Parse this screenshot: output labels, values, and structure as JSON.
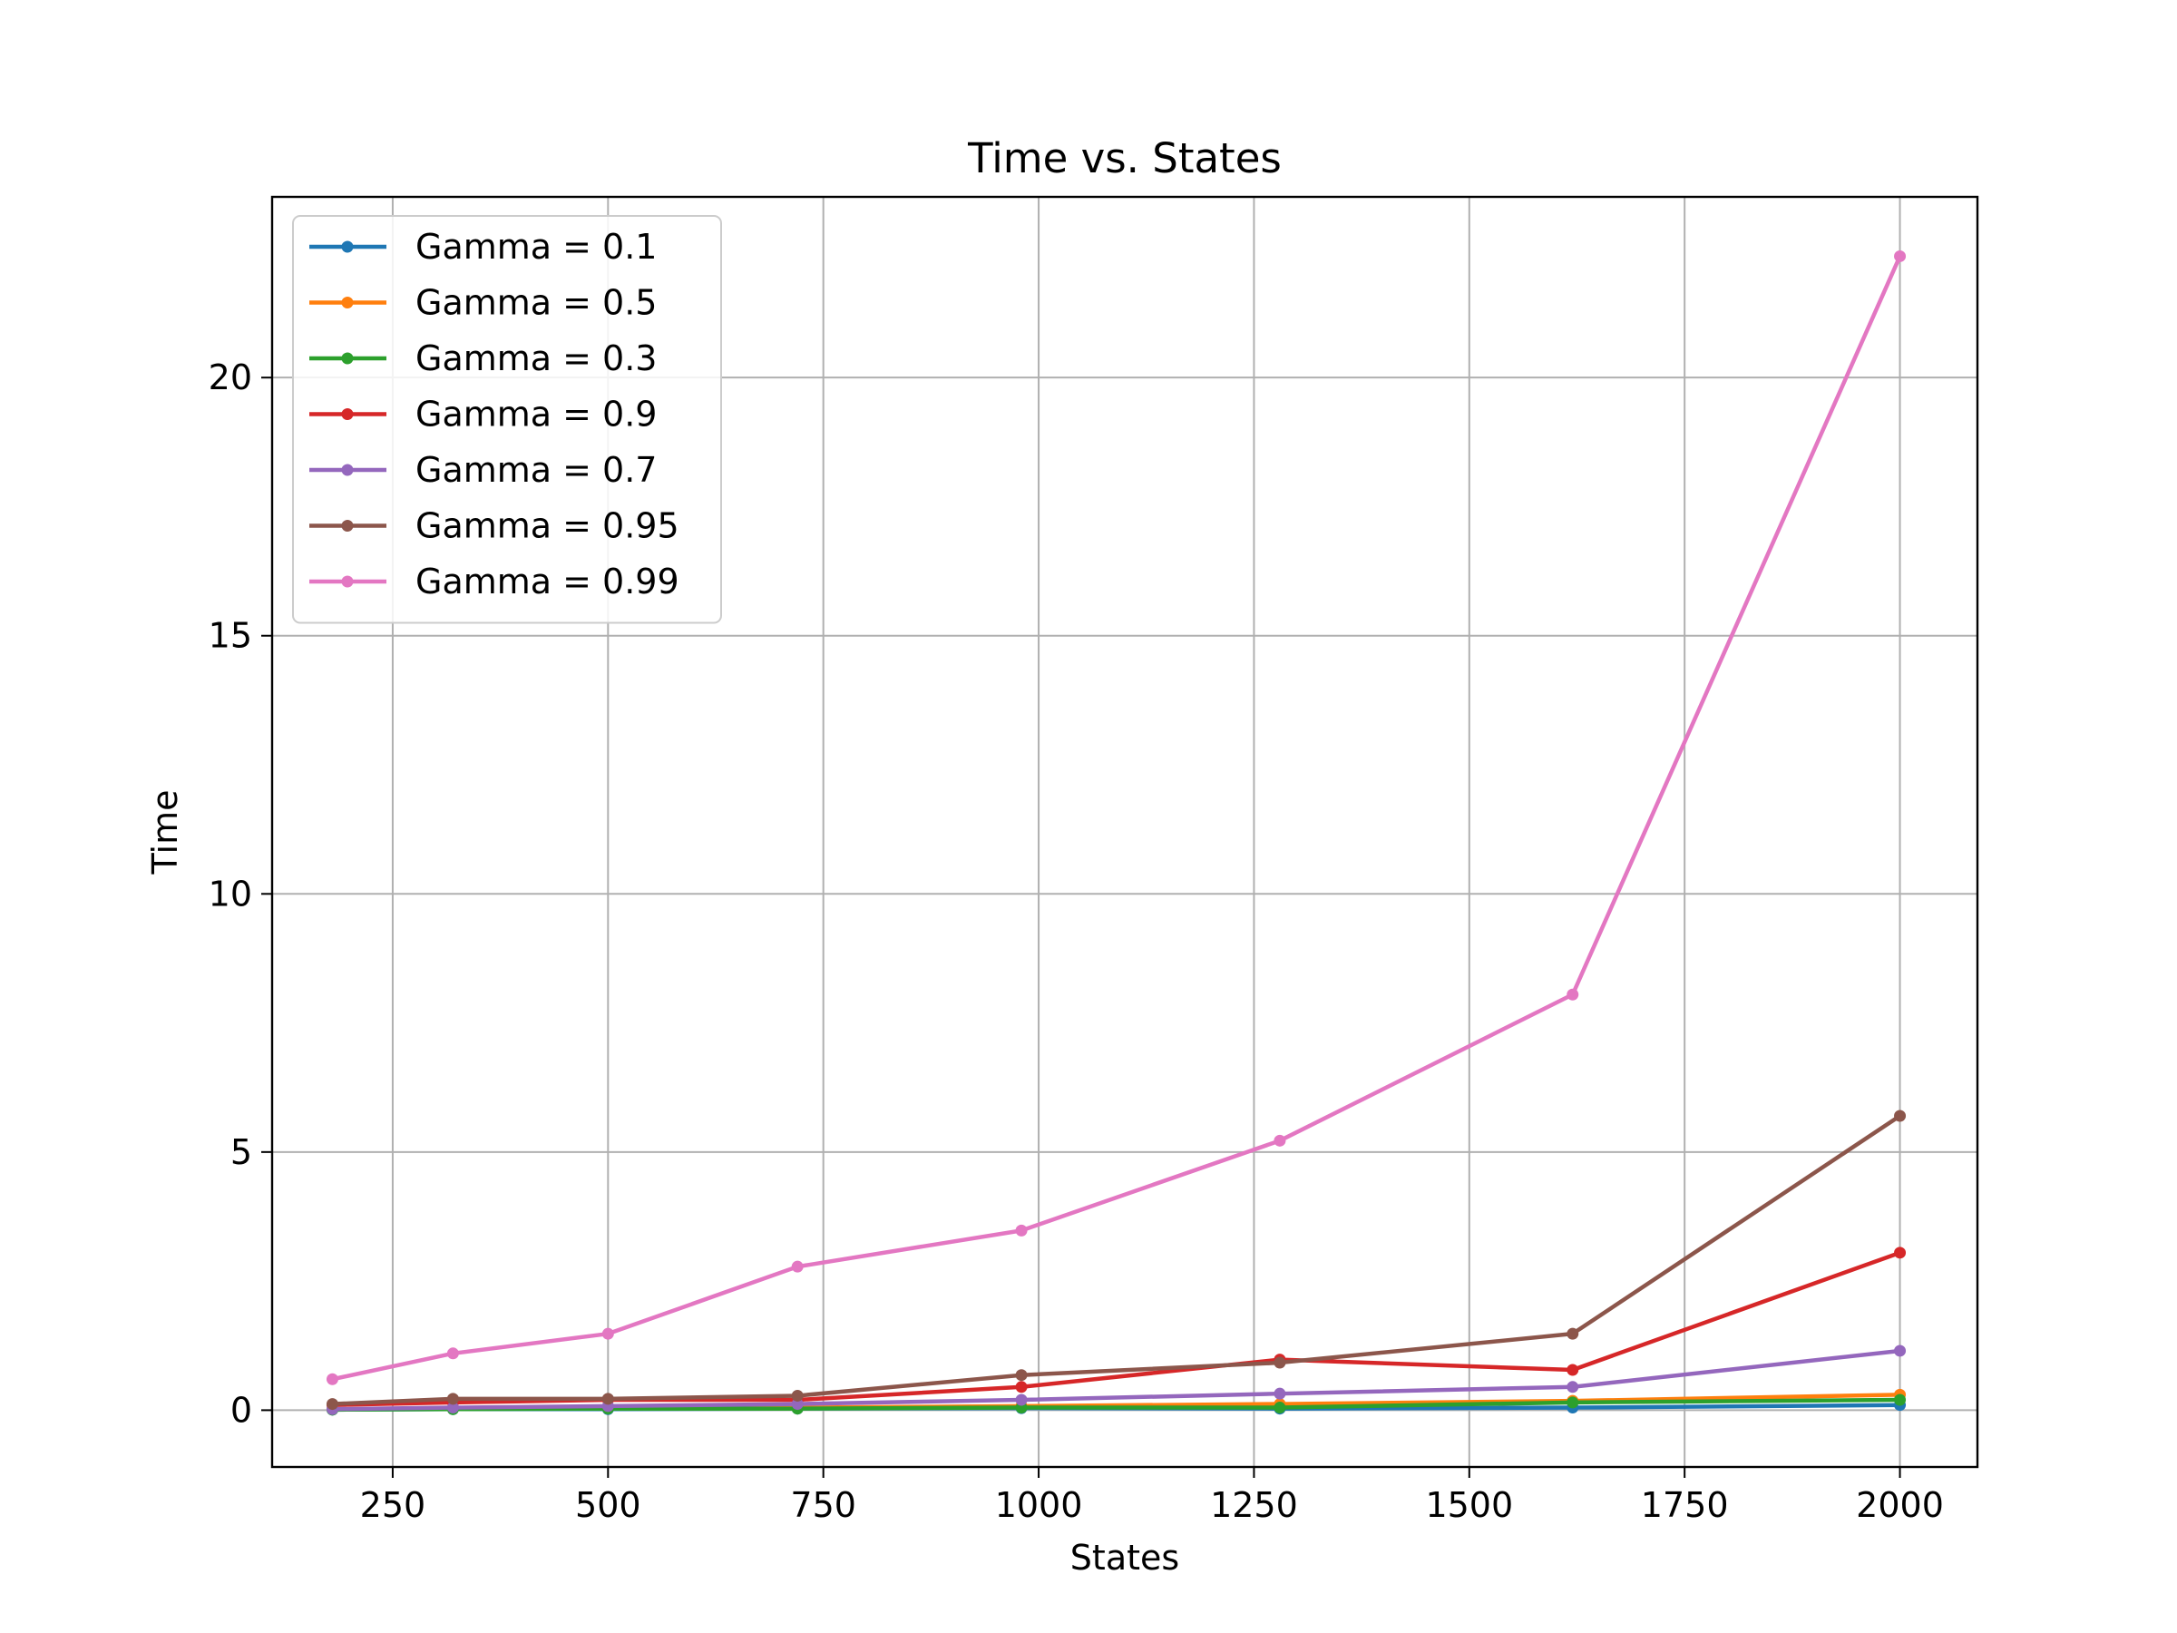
{
  "chart_data": {
    "type": "line",
    "title": "Time vs. States",
    "xlabel": "States",
    "ylabel": "Time",
    "xlim": [
      110,
      2090
    ],
    "ylim": [
      -1.1,
      23.5
    ],
    "xticks": [
      250,
      500,
      750,
      1000,
      1250,
      1500,
      1750,
      2000
    ],
    "yticks": [
      0,
      5,
      10,
      15,
      20
    ],
    "grid": true,
    "legend_position": "top-left",
    "x": [
      180,
      320,
      500,
      720,
      980,
      1280,
      1620,
      2000
    ],
    "series": [
      {
        "name": "Gamma = 0.1",
        "color": "#1f77b4",
        "values": [
          0.01,
          0.02,
          0.02,
          0.03,
          0.04,
          0.03,
          0.05,
          0.1
        ]
      },
      {
        "name": "Gamma = 0.5",
        "color": "#ff7f0e",
        "values": [
          0.02,
          0.03,
          0.04,
          0.05,
          0.08,
          0.12,
          0.18,
          0.3
        ]
      },
      {
        "name": "Gamma = 0.3",
        "color": "#2ca02c",
        "values": [
          0.01,
          0.02,
          0.03,
          0.03,
          0.05,
          0.05,
          0.15,
          0.2
        ]
      },
      {
        "name": "Gamma = 0.9",
        "color": "#d62728",
        "values": [
          0.1,
          0.15,
          0.2,
          0.2,
          0.45,
          0.98,
          0.78,
          3.05
        ]
      },
      {
        "name": "Gamma = 0.7",
        "color": "#9467bd",
        "values": [
          0.02,
          0.05,
          0.08,
          0.12,
          0.2,
          0.32,
          0.45,
          1.15
        ]
      },
      {
        "name": "Gamma = 0.95",
        "color": "#8c564b",
        "values": [
          0.12,
          0.22,
          0.22,
          0.28,
          0.68,
          0.92,
          1.48,
          5.7
        ]
      },
      {
        "name": "Gamma = 0.99",
        "color": "#e377c2",
        "values": [
          0.6,
          1.1,
          1.48,
          2.78,
          3.48,
          5.22,
          8.05,
          22.35
        ]
      }
    ]
  }
}
